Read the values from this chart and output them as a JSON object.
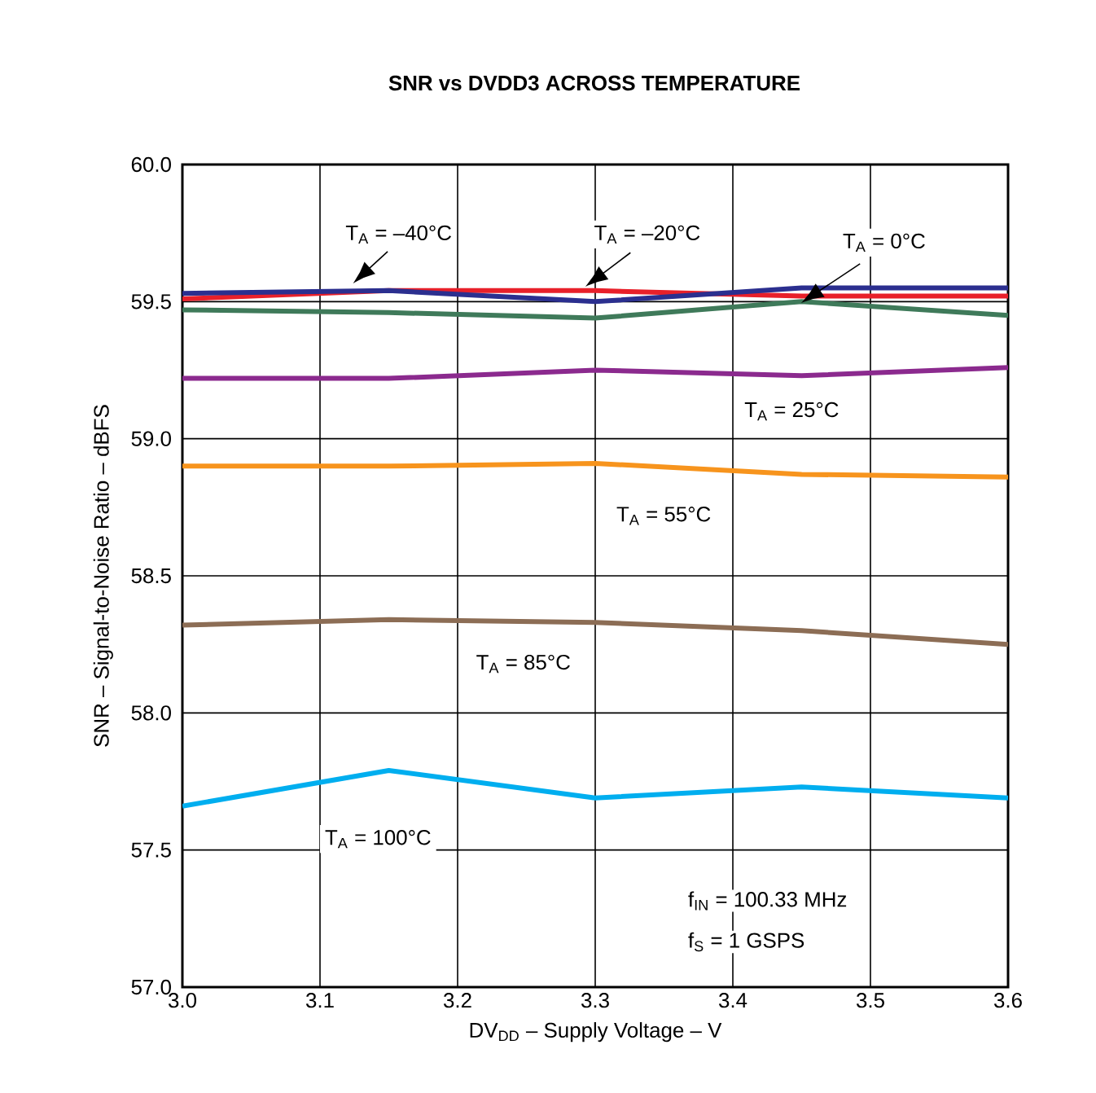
{
  "chart_data": {
    "type": "line",
    "title": "SNR vs DVDD3 ACROSS TEMPERATURE",
    "xlabel": "DV$_{DD}$ – Supply Voltage – V",
    "ylabel": "SNR – Signal-to-Noise Ratio – dBFS",
    "x": [
      3.0,
      3.15,
      3.3,
      3.45,
      3.6
    ],
    "series": [
      {
        "name": "T$_{A}$ = 100°C",
        "color": "#00aeef",
        "values": [
          57.66,
          57.79,
          57.69,
          57.73,
          57.69
        ]
      },
      {
        "name": "T$_{A}$ = 85°C",
        "color": "#8c6d55",
        "values": [
          58.32,
          58.34,
          58.33,
          58.3,
          58.25
        ]
      },
      {
        "name": "T$_{A}$ = 55°C",
        "color": "#f7941d",
        "values": [
          58.9,
          58.9,
          58.91,
          58.87,
          58.86
        ]
      },
      {
        "name": "T$_{A}$ = 25°C",
        "color": "#8b2a8e",
        "values": [
          59.22,
          59.22,
          59.25,
          59.23,
          59.26
        ]
      },
      {
        "name": "T$_{A}$ = 0°C",
        "color": "#3f7a5a",
        "values": [
          59.47,
          59.46,
          59.44,
          59.5,
          59.45
        ]
      },
      {
        "name": "T$_{A}$ = –20°C",
        "color": "#e8202a",
        "values": [
          59.51,
          59.54,
          59.54,
          59.52,
          59.52
        ]
      },
      {
        "name": "T$_{A}$ = –40°C",
        "color": "#2b2f8f",
        "values": [
          59.53,
          59.54,
          59.5,
          59.55,
          59.55
        ]
      }
    ],
    "xlim": [
      3.0,
      3.6
    ],
    "ylim": [
      57.0,
      60.0
    ],
    "xticks": [
      {
        "value": 3.0,
        "label": "3.0"
      },
      3.1,
      3.2,
      3.3,
      3.4,
      3.5,
      3.6
    ],
    "yticks": [
      {
        "value": 57.0,
        "label": "57.0"
      },
      57.5,
      {
        "value": 58.0,
        "label": "58.0"
      },
      58.5,
      {
        "value": 59.0,
        "label": "59.0"
      },
      59.5,
      {
        "value": 60.0,
        "label": "60.0"
      }
    ],
    "grid": true,
    "marker": "none",
    "line_style": "solid",
    "annotations": [
      "f$_{IN}$ = 100.33 MHz",
      "f$_{S}$ = 1 GSPS"
    ]
  }
}
